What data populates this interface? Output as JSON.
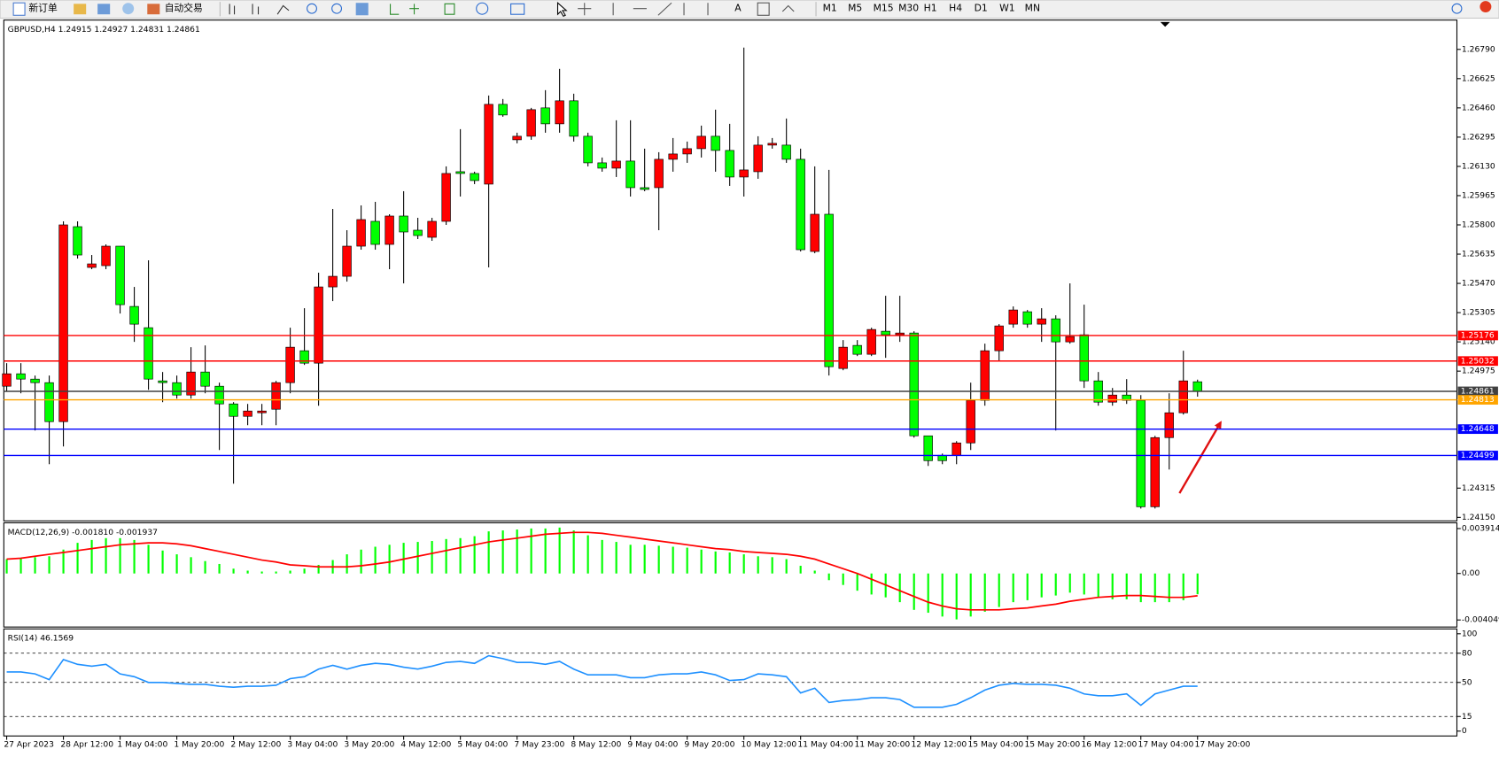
{
  "toolbar": {
    "buttons": [
      "新订单",
      "自动交易"
    ],
    "timeframes": [
      "M1",
      "M5",
      "M15",
      "M30",
      "H1",
      "H4",
      "D1",
      "W1",
      "MN"
    ]
  },
  "chart_data": [
    {
      "type": "candlestick",
      "title": "GBPUSD,H4  1.24915 1.24927 1.24831 1.24861",
      "categories": [
        "27 Apr 2023",
        null,
        null,
        null,
        "28 Apr 12:00",
        null,
        null,
        null,
        "1 May 04:00",
        null,
        null,
        null,
        "1 May 20:00",
        null,
        null,
        null,
        "2 May 12:00",
        null,
        null,
        null,
        "3 May 04:00",
        null,
        null,
        null,
        "3 May 20:00",
        null,
        null,
        null,
        "4 May 12:00",
        null,
        null,
        null,
        "5 May 04:00",
        null,
        null,
        null,
        "7 May 23:00",
        null,
        null,
        null,
        "8 May 12:00",
        null,
        null,
        null,
        "9 May 04:00",
        null,
        null,
        null,
        "9 May 20:00",
        null,
        null,
        null,
        "10 May 12:00",
        null,
        null,
        null,
        "11 May 04:00",
        null,
        null,
        null,
        "11 May 20:00",
        null,
        null,
        null,
        "12 May 12:00",
        null,
        null,
        null,
        "15 May 04:00",
        null,
        null,
        null,
        "15 May 20:00",
        null,
        null,
        null,
        "16 May 12:00",
        null,
        null,
        null,
        "17 May 04:00",
        null,
        null,
        null,
        "17 May 20:00"
      ],
      "open": [
        1.2489,
        1.2496,
        1.2493,
        1.2491,
        1.2469,
        1.2579,
        1.2556,
        1.2557,
        1.2568,
        1.2534,
        1.2522,
        1.2492,
        1.2491,
        1.2484,
        1.2497,
        1.2489,
        1.2479,
        1.2472,
        1.2474,
        1.2476,
        1.2491,
        1.2509,
        1.2502,
        1.2545,
        1.2551,
        1.2568,
        1.2582,
        1.2569,
        1.2585,
        1.2577,
        1.2573,
        1.2582,
        1.261,
        1.2609,
        1.2603,
        1.2648,
        1.2628,
        1.263,
        1.2646,
        1.2637,
        1.265,
        1.263,
        1.2615,
        1.2612,
        1.2616,
        1.2601,
        1.2601,
        1.2617,
        1.262,
        1.2623,
        1.263,
        1.2622,
        1.2607,
        1.261,
        1.2625,
        1.2625,
        1.2617,
        1.2565,
        1.2586,
        1.2499,
        1.2512,
        1.2507,
        1.252,
        1.2518,
        1.2519,
        1.2461,
        1.245,
        1.245,
        1.2457,
        1.2481,
        1.2509,
        1.2524,
        1.2531,
        1.2524,
        1.2527,
        1.2514,
        1.2518,
        1.2492,
        1.248,
        1.2484,
        1.2481,
        1.2421,
        1.246,
        1.2474,
        1.24915
      ],
      "high": [
        1.2502,
        1.2502,
        1.2495,
        1.2495,
        1.2582,
        1.2582,
        1.2563,
        1.2569,
        1.2568,
        1.2545,
        1.256,
        1.2497,
        1.2495,
        1.2511,
        1.2512,
        1.2491,
        1.248,
        1.2479,
        1.2479,
        1.2492,
        1.2522,
        1.2533,
        1.2553,
        1.2589,
        1.2577,
        1.2591,
        1.2593,
        1.2586,
        1.2599,
        1.2584,
        1.2584,
        1.2613,
        1.2634,
        1.261,
        1.2653,
        1.2651,
        1.2632,
        1.2646,
        1.2656,
        1.2668,
        1.2654,
        1.2632,
        1.2618,
        1.2639,
        1.2639,
        1.2623,
        1.2621,
        1.2629,
        1.2627,
        1.2636,
        1.2645,
        1.2637,
        1.268,
        1.263,
        1.2629,
        1.264,
        1.2623,
        1.2613,
        1.2611,
        1.2515,
        1.2515,
        1.2522,
        1.254,
        1.254,
        1.252,
        1.2461,
        1.2451,
        1.2458,
        1.2491,
        1.2513,
        1.2524,
        1.2534,
        1.2532,
        1.2533,
        1.2529,
        1.2547,
        1.2535,
        1.2497,
        1.2488,
        1.2493,
        1.2484,
        1.2461,
        1.2485,
        1.2509,
        1.24927
      ],
      "low": [
        1.2486,
        1.2485,
        1.2464,
        1.2445,
        1.2455,
        1.2561,
        1.2555,
        1.2555,
        1.253,
        1.2514,
        1.2487,
        1.248,
        1.2482,
        1.2482,
        1.2485,
        1.2453,
        1.2434,
        1.2467,
        1.2467,
        1.2467,
        1.2485,
        1.2501,
        1.2478,
        1.2537,
        1.2548,
        1.2566,
        1.2566,
        1.2555,
        1.2547,
        1.2572,
        1.2571,
        1.258,
        1.2596,
        1.2603,
        1.2556,
        1.2641,
        1.2626,
        1.2628,
        1.2632,
        1.2632,
        1.2627,
        1.2613,
        1.261,
        1.2607,
        1.2596,
        1.2599,
        1.2577,
        1.261,
        1.2615,
        1.2618,
        1.261,
        1.2602,
        1.2596,
        1.2606,
        1.2623,
        1.2615,
        1.2565,
        1.2564,
        1.2495,
        1.2498,
        1.2506,
        1.2506,
        1.2505,
        1.2514,
        1.246,
        1.2444,
        1.2445,
        1.2445,
        1.2453,
        1.2478,
        1.2503,
        1.2522,
        1.2522,
        1.2514,
        1.2464,
        1.2513,
        1.2488,
        1.2478,
        1.2478,
        1.2479,
        1.242,
        1.242,
        1.2442,
        1.2473,
        1.24831
      ],
      "close": [
        1.2496,
        1.2493,
        1.2491,
        1.2469,
        1.258,
        1.2563,
        1.2558,
        1.2568,
        1.2535,
        1.2524,
        1.2493,
        1.2491,
        1.2484,
        1.2497,
        1.2489,
        1.2479,
        1.2472,
        1.2475,
        1.2475,
        1.2491,
        1.2511,
        1.2502,
        1.2545,
        1.2551,
        1.2568,
        1.2583,
        1.2569,
        1.2585,
        1.2576,
        1.2574,
        1.2582,
        1.2609,
        1.2609,
        1.2605,
        1.2648,
        1.2642,
        1.263,
        1.2645,
        1.2637,
        1.265,
        1.263,
        1.2615,
        1.2612,
        1.2616,
        1.2601,
        1.26,
        1.2617,
        1.262,
        1.2623,
        1.263,
        1.2622,
        1.2607,
        1.2611,
        1.2625,
        1.2626,
        1.2617,
        1.2566,
        1.2586,
        1.25,
        1.2511,
        1.2507,
        1.2521,
        1.2518,
        1.2519,
        1.2461,
        1.2447,
        1.2447,
        1.2457,
        1.2481,
        1.2509,
        1.2523,
        1.2532,
        1.2524,
        1.2527,
        1.2514,
        1.2517,
        1.2492,
        1.248,
        1.2484,
        1.2481,
        1.2421,
        1.246,
        1.2474,
        1.2492,
        1.24861
      ],
      "up_color": "#ff0000",
      "down_color": "#00ff00",
      "ylim": [
        1.2413,
        1.2695
      ],
      "yticks": [
        {
          "value": 1.2679,
          "label": "1.26790"
        },
        1.26625,
        {
          "value": 1.2646,
          "label": "1.26460"
        },
        1.26295,
        {
          "value": 1.2613,
          "label": "1.26130"
        },
        1.25965,
        {
          "value": 1.258,
          "label": "1.25800"
        },
        1.25635,
        {
          "value": 1.2547,
          "label": "1.25470"
        },
        1.25305,
        {
          "value": 1.2514,
          "label": "1.25140"
        },
        1.24975,
        1.24315,
        {
          "value": 1.2415,
          "label": "1.24150"
        }
      ],
      "hlines": [
        {
          "value": 1.25176,
          "color": "#ff0000"
        },
        {
          "value": 1.25032,
          "color": "#ff0000"
        },
        {
          "value": 1.24861,
          "color": "#404040"
        },
        {
          "value": 1.24813,
          "color": "#ffa500"
        },
        {
          "value": 1.24648,
          "color": "#0000ff"
        },
        {
          "value": 1.24499,
          "color": "#0000ff"
        }
      ]
    },
    {
      "type": "macd",
      "title": "MACD(12,26,9) -0.001810 -0.001937",
      "series": [
        {
          "type": "bar",
          "color": "#00ff00",
          "values": [
            0.00125,
            0.00133,
            0.00142,
            0.0015,
            0.00208,
            0.00267,
            0.00292,
            0.00308,
            0.00308,
            0.00292,
            0.0025,
            0.002,
            0.00167,
            0.00142,
            0.00108,
            0.00083,
            0.00042,
            0.00025,
            0.00017,
            0.00017,
            0.00025,
            0.00042,
            0.00075,
            0.00117,
            0.00167,
            0.00208,
            0.00233,
            0.0025,
            0.00267,
            0.00275,
            0.00283,
            0.003,
            0.00308,
            0.00325,
            0.00367,
            0.00375,
            0.00383,
            0.00392,
            0.00392,
            0.004,
            0.00375,
            0.00333,
            0.00292,
            0.00275,
            0.0025,
            0.0025,
            0.00242,
            0.00233,
            0.00225,
            0.00208,
            0.00192,
            0.00183,
            0.00167,
            0.0015,
            0.00142,
            0.00125,
            0.00067,
            0.00025,
            -0.00058,
            -0.001,
            -0.0015,
            -0.00183,
            -0.00208,
            -0.0025,
            -0.00317,
            -0.00342,
            -0.00375,
            -0.004,
            -0.00375,
            -0.00333,
            -0.00292,
            -0.0025,
            -0.00233,
            -0.00208,
            -0.00192,
            -0.00167,
            -0.00183,
            -0.00208,
            -0.00225,
            -0.00225,
            -0.0025,
            -0.0025,
            -0.0025,
            -0.00233,
            -0.00181
          ]
        },
        {
          "type": "line",
          "color": "#ff0000",
          "values": [
            0.00125,
            0.00133,
            0.0015,
            0.00167,
            0.00183,
            0.002,
            0.00217,
            0.00233,
            0.0025,
            0.00258,
            0.00267,
            0.00267,
            0.00258,
            0.00242,
            0.00217,
            0.00192,
            0.00167,
            0.00142,
            0.00117,
            0.001,
            0.00075,
            0.00067,
            0.00058,
            0.00058,
            0.00058,
            0.00067,
            0.00083,
            0.001,
            0.00125,
            0.0015,
            0.00175,
            0.002,
            0.00225,
            0.0025,
            0.00275,
            0.00292,
            0.00308,
            0.00325,
            0.00342,
            0.0035,
            0.00358,
            0.00358,
            0.0035,
            0.00333,
            0.00317,
            0.003,
            0.00283,
            0.00267,
            0.0025,
            0.00233,
            0.00217,
            0.00208,
            0.00192,
            0.00183,
            0.00175,
            0.00167,
            0.0015,
            0.00125,
            0.00083,
            0.00042,
            0,
            -0.0005,
            -0.001,
            -0.0015,
            -0.002,
            -0.0025,
            -0.00283,
            -0.00308,
            -0.00317,
            -0.00317,
            -0.00317,
            -0.00308,
            -0.003,
            -0.00283,
            -0.00267,
            -0.00242,
            -0.00225,
            -0.00208,
            -0.002,
            -0.00192,
            -0.00192,
            -0.002,
            -0.00208,
            -0.00208,
            -0.001937
          ]
        }
      ],
      "ylim": [
        -0.00458,
        0.00433
      ],
      "yticks": [
        0.003914,
        {
          "value": 0,
          "label": "0.00"
        },
        -0.004049
      ]
    },
    {
      "type": "line",
      "title": "RSI(14) 46.1569",
      "color": "#1e90ff",
      "values": [
        60.8,
        60.8,
        58.8,
        52.9,
        73.5,
        68.6,
        66.7,
        68.6,
        58.8,
        55.9,
        50.0,
        50.0,
        49.0,
        48.0,
        48.0,
        46.1,
        45.1,
        46.1,
        46.1,
        47.1,
        53.9,
        55.9,
        63.7,
        67.6,
        63.7,
        67.6,
        69.6,
        68.6,
        65.7,
        63.7,
        66.7,
        70.6,
        71.6,
        69.6,
        77.5,
        74.5,
        70.6,
        70.6,
        68.6,
        71.6,
        63.7,
        57.8,
        57.8,
        57.8,
        54.9,
        54.9,
        57.8,
        58.8,
        58.8,
        60.8,
        57.8,
        52.0,
        52.9,
        58.8,
        57.8,
        55.9,
        39.2,
        44.1,
        29.4,
        31.4,
        32.4,
        34.3,
        34.3,
        32.4,
        24.5,
        24.5,
        24.5,
        27.5,
        34.3,
        42.2,
        47.1,
        49.0,
        48.0,
        48.0,
        47.1,
        44.1,
        38.2,
        36.3,
        36.3,
        38.2,
        26.5,
        38.2,
        42.2,
        46.1,
        46.1569
      ],
      "ylim": [
        -5,
        104
      ],
      "yticks": [
        100,
        80,
        50,
        15,
        0
      ],
      "levels": [
        80,
        50,
        15
      ]
    }
  ]
}
